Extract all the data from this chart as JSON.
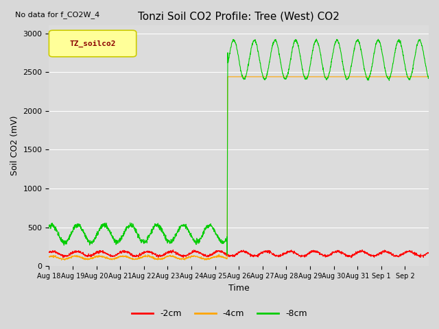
{
  "title": "Tonzi Soil CO2 Profile: Tree (West) CO2",
  "no_data_text": "No data for f_CO2W_4",
  "ylabel": "Soil CO2 (mV)",
  "xlabel": "Time",
  "ylim": [
    0,
    3100
  ],
  "yticks": [
    0,
    500,
    1000,
    1500,
    2000,
    2500,
    3000
  ],
  "legend_label": "TZ_soilco2",
  "line_colors": {
    "2cm": "#ff0000",
    "4cm": "#ffa500",
    "8cm": "#00cc00"
  },
  "legend_items": [
    "-2cm",
    "-4cm",
    "-8cm"
  ],
  "bg_color": "#dcdcdc",
  "fig_color": "#d8d8d8",
  "xtick_labels": [
    "Aug 18",
    "Aug 19",
    "Aug 20",
    "Aug 21",
    "Aug 22",
    "Aug 23",
    "Aug 24",
    "Aug 25",
    "Aug 26",
    "Aug 27",
    "Aug 28",
    "Aug 29",
    "Aug 30",
    "Aug 31",
    "Sep 1",
    "Sep 2"
  ],
  "jump_day": 7.5,
  "num_days": 16,
  "red_base": 160,
  "red_amp": 30,
  "red_freq": 1.0,
  "orange_base": 110,
  "orange_amp": 20,
  "orange_freq": 1.0,
  "green_before_base": 420,
  "green_before_amp": 110,
  "green_before_freq": 0.9,
  "orange_after_flat": 2440,
  "green_after_base": 2660,
  "green_after_amp": 250,
  "green_after_freq": 1.15
}
